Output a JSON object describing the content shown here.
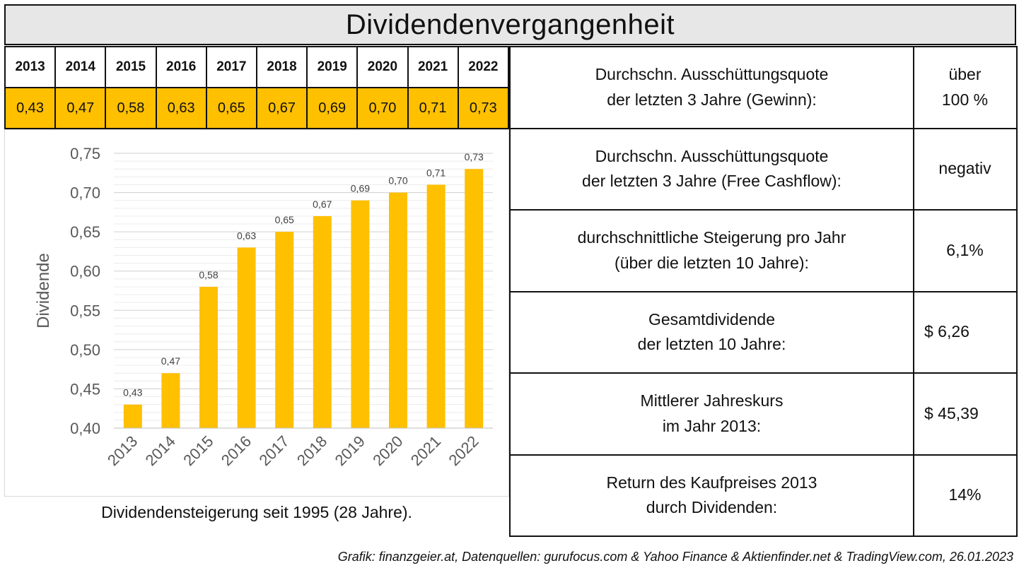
{
  "title": "Dividendenvergangenheit",
  "year_row": {
    "years": [
      "2013",
      "2014",
      "2015",
      "2016",
      "2017",
      "2018",
      "2019",
      "2020",
      "2021",
      "2022"
    ],
    "values": [
      "0,43",
      "0,47",
      "0,58",
      "0,63",
      "0,65",
      "0,67",
      "0,69",
      "0,70",
      "0,71",
      "0,73"
    ]
  },
  "chart_data": {
    "type": "bar",
    "categories": [
      "2013",
      "2014",
      "2015",
      "2016",
      "2017",
      "2018",
      "2019",
      "2020",
      "2021",
      "2022"
    ],
    "values": [
      0.43,
      0.47,
      0.58,
      0.63,
      0.65,
      0.67,
      0.69,
      0.7,
      0.71,
      0.73
    ],
    "data_labels": [
      "0,43",
      "0,47",
      "0,58",
      "0,63",
      "0,65",
      "0,67",
      "0,69",
      "0,70",
      "0,71",
      "0,73"
    ],
    "ylabel": "Dividende",
    "ylim": [
      0.4,
      0.75
    ],
    "yticks": [
      "0,40",
      "0,45",
      "0,50",
      "0,55",
      "0,60",
      "0,65",
      "0,70",
      "0,75"
    ],
    "bar_color": "#ffc000",
    "grid": true
  },
  "caption": "Dividendensteigerung seit 1995 (28 Jahre).",
  "metrics": [
    {
      "label1": "Durchschn. Ausschüttungsquote",
      "label2": "der letzten 3 Jahre (Gewinn):",
      "value1": "über",
      "value2": "100 %"
    },
    {
      "label1": "Durchschn. Ausschüttungsquote",
      "label2": "der letzten 3 Jahre (Free Cashflow):",
      "value1": "negativ",
      "value2": ""
    },
    {
      "label1": "durchschnittliche Steigerung pro Jahr",
      "label2": "(über die letzten 10 Jahre):",
      "value1": "6,1%",
      "value2": ""
    },
    {
      "label1": "Gesamtdividende",
      "label2": "der letzten 10 Jahre:",
      "value1": "$ 6,26",
      "value2": ""
    },
    {
      "label1": "Mittlerer Jahreskurs",
      "label2": "im Jahr 2013:",
      "value1": "$ 45,39",
      "value2": ""
    },
    {
      "label1": "Return des Kaufpreises 2013",
      "label2": "durch Dividenden:",
      "value1": "14%",
      "value2": ""
    }
  ],
  "footer": "Grafik: finanzgeier.at, Datenquellen: gurufocus.com & Yahoo Finance & Aktienfinder.net & TradingView.com, 26.01.2023",
  "colors": {
    "accent": "#ffc000",
    "title_bg": "#e7e7e7"
  }
}
